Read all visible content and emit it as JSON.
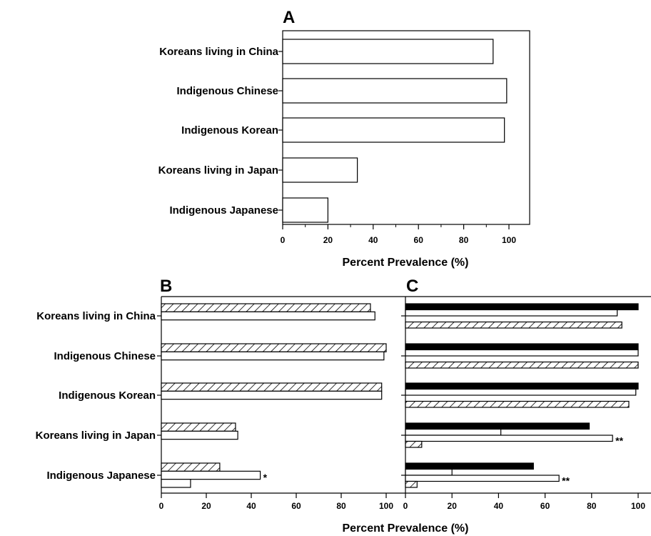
{
  "chart_data": [
    {
      "panel": "A",
      "type": "bar",
      "orientation": "horizontal",
      "categories": [
        "Koreans living in China",
        "Indigenous Chinese",
        "Indigenous Korean",
        "Koreans living in Japan",
        "Indigenous Japanese"
      ],
      "series": [
        {
          "style": "white",
          "values": [
            93,
            99,
            98,
            33,
            20
          ]
        }
      ],
      "annotations": [
        "",
        "",
        "",
        "",
        ""
      ],
      "xlabel": "Percent Prevalence (%)",
      "xlim": [
        0,
        108
      ],
      "xticks": [
        0,
        20,
        40,
        60,
        80,
        100
      ]
    },
    {
      "panel": "B",
      "type": "bar",
      "orientation": "horizontal",
      "categories": [
        "Koreans living in China",
        "Indigenous Chinese",
        "Indigenous Korean",
        "Koreans living in Japan",
        "Indigenous Japanese"
      ],
      "series": [
        {
          "style": "hatched",
          "values": [
            93,
            100,
            98,
            33,
            26
          ]
        },
        {
          "style": "white",
          "values": [
            95,
            99,
            98,
            34,
            44
          ]
        },
        {
          "style": "white",
          "values": [
            null,
            null,
            null,
            null,
            13
          ]
        }
      ],
      "annotations": [
        "",
        "",
        "",
        "",
        "*"
      ],
      "xlabel": "",
      "xlim": [
        0,
        108
      ],
      "xticks": [
        0,
        20,
        40,
        60,
        80,
        100
      ]
    },
    {
      "panel": "C",
      "type": "bar",
      "orientation": "horizontal",
      "categories": [
        "Koreans living in China",
        "Indigenous Chinese",
        "Indigenous Korean",
        "Koreans living in Japan",
        "Indigenous Japanese"
      ],
      "series": [
        {
          "style": "black",
          "values": [
            100,
            100,
            100,
            79,
            55
          ]
        },
        {
          "style": "white",
          "values": [
            91,
            100,
            99,
            41,
            20
          ]
        },
        {
          "style": "white",
          "values": [
            null,
            null,
            null,
            89,
            66
          ]
        },
        {
          "style": "hatched",
          "values": [
            93,
            100,
            96,
            7,
            5
          ]
        }
      ],
      "annotations": [
        "",
        "",
        "",
        "**",
        "**"
      ],
      "xlabel": "",
      "xlim": [
        0,
        108
      ],
      "xticks": [
        0,
        20,
        40,
        60,
        80,
        100
      ]
    }
  ],
  "shared_xlabel": "Percent Prevalence (%)"
}
